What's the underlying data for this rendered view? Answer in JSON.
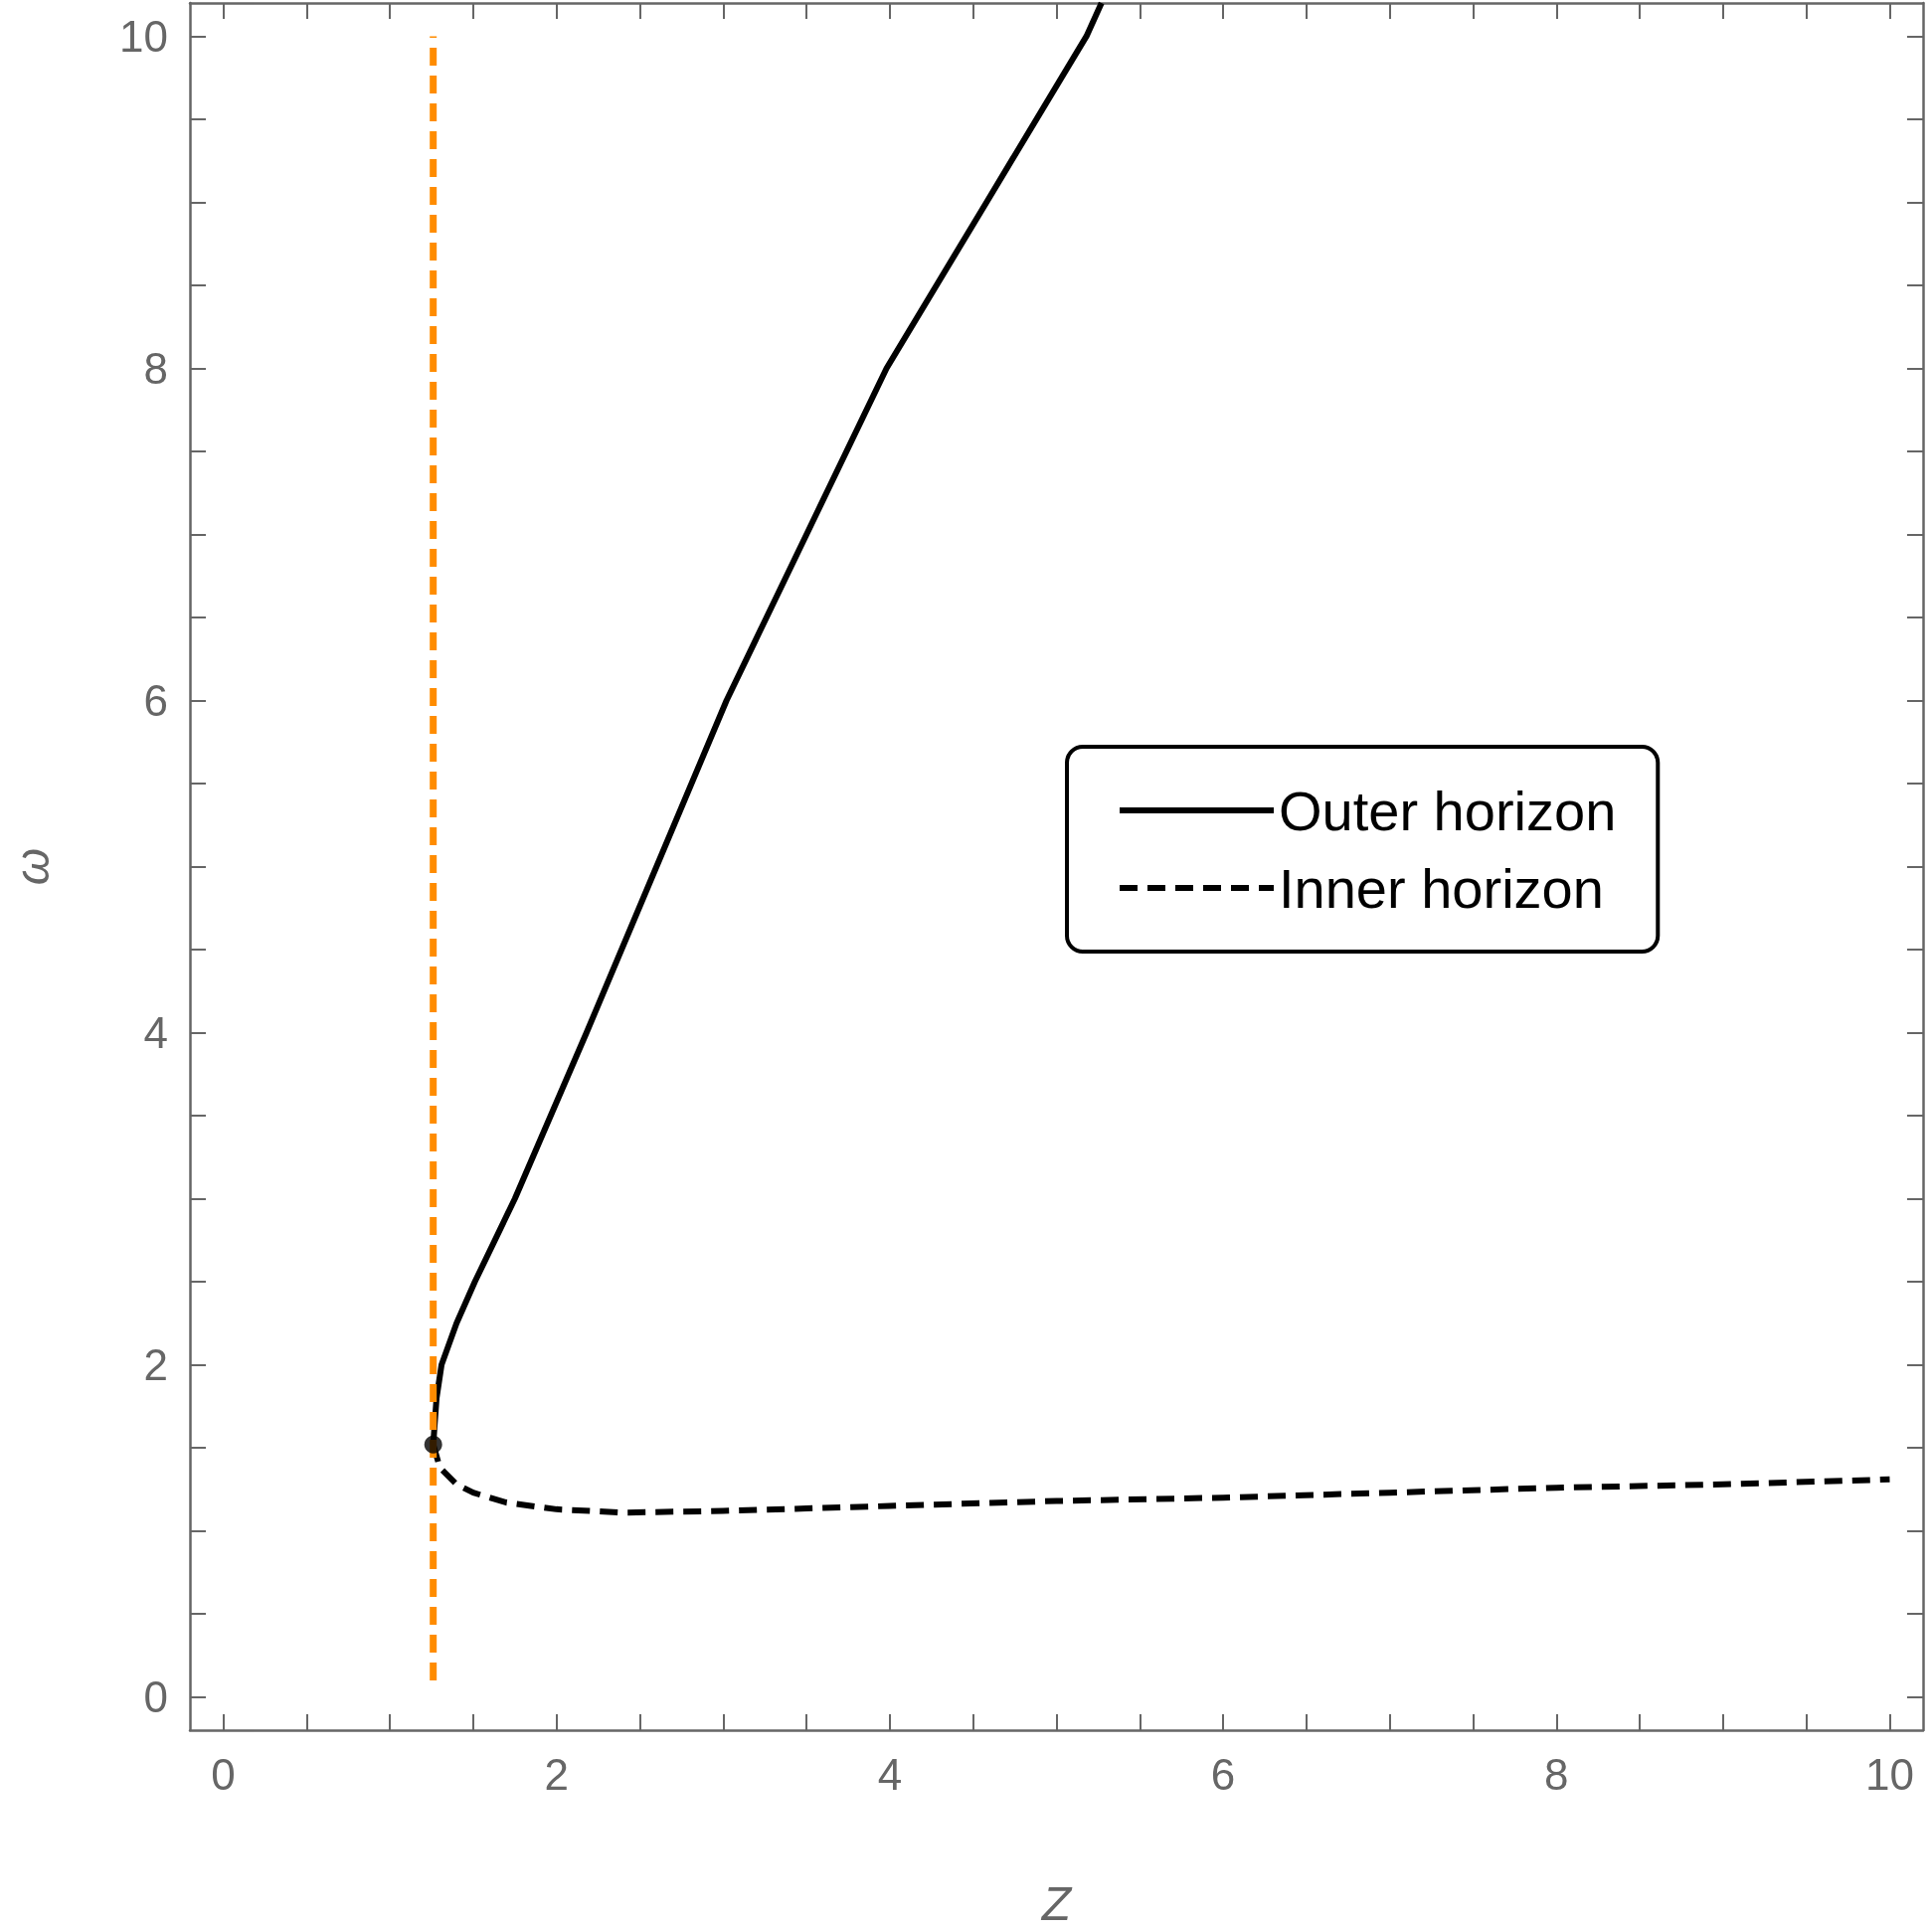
{
  "chart_data": {
    "type": "line",
    "xlabel": "Z",
    "ylabel": "ω",
    "xlim": [
      -0.2,
      10.2
    ],
    "ylim": [
      -0.2,
      10.2
    ],
    "xticks": [
      0,
      {
        "value": 0.5,
        "label": null
      },
      {
        "value": 1,
        "label": null
      },
      {
        "value": 1.5,
        "label": null
      },
      2,
      {
        "value": 2.5,
        "label": null
      },
      {
        "value": 3,
        "label": null
      },
      {
        "value": 3.5,
        "label": null
      },
      4,
      {
        "value": 4.5,
        "label": null
      },
      {
        "value": 5,
        "label": null
      },
      {
        "value": 5.5,
        "label": null
      },
      6,
      {
        "value": 6.5,
        "label": null
      },
      {
        "value": 7,
        "label": null
      },
      {
        "value": 7.5,
        "label": null
      },
      8,
      {
        "value": 8.5,
        "label": null
      },
      {
        "value": 9,
        "label": null
      },
      {
        "value": 9.5,
        "label": null
      },
      10
    ],
    "yticks": [
      0,
      {
        "value": 0.5,
        "label": null
      },
      {
        "value": 1,
        "label": null
      },
      {
        "value": 1.5,
        "label": null
      },
      2,
      {
        "value": 2.5,
        "label": null
      },
      {
        "value": 3,
        "label": null
      },
      {
        "value": 3.5,
        "label": null
      },
      4,
      {
        "value": 4.5,
        "label": null
      },
      {
        "value": 5,
        "label": null
      },
      {
        "value": 5.5,
        "label": null
      },
      6,
      {
        "value": 6.5,
        "label": null
      },
      {
        "value": 7,
        "label": null
      },
      {
        "value": 7.5,
        "label": null
      },
      8,
      {
        "value": 8.5,
        "label": null
      },
      {
        "value": 9,
        "label": null
      },
      {
        "value": 9.5,
        "label": null
      },
      10
    ],
    "grid": false,
    "legend": "right",
    "series": [
      {
        "name": "Outer horizon",
        "color": "#000000",
        "line_style": "solid",
        "marker": "none",
        "x": [
          1.26,
          1.28,
          1.31,
          1.4,
          1.51,
          1.75,
          2.18,
          2.6,
          3.02,
          3.5,
          3.98,
          4.58,
          5.18,
          5.27
        ],
        "values": [
          1.52,
          1.8,
          2.0,
          2.25,
          2.5,
          3.0,
          4.0,
          5.0,
          6.0,
          7.0,
          8.0,
          9.0,
          10.0,
          10.2
        ]
      },
      {
        "name": "Inner horizon",
        "color": "#000000",
        "line_style": "dashed",
        "marker": "none",
        "x": [
          1.26,
          1.3,
          1.4,
          1.5,
          1.7,
          2.0,
          2.4,
          3.0,
          4.0,
          5.0,
          6.0,
          7.0,
          8.0,
          9.0,
          10.0
        ],
        "values": [
          1.52,
          1.38,
          1.28,
          1.23,
          1.17,
          1.13,
          1.11,
          1.12,
          1.15,
          1.18,
          1.2,
          1.23,
          1.26,
          1.28,
          1.31
        ]
      },
      {
        "color": "#ff8c00",
        "line_style": "dashed",
        "marker": "none",
        "x": [
          1.26,
          1.26
        ],
        "values": [
          0.1,
          10.0
        ]
      },
      {
        "type": "scatter",
        "color": "#000000",
        "marker": "circle",
        "x": [
          1.26
        ],
        "values": [
          1.52
        ]
      }
    ]
  }
}
